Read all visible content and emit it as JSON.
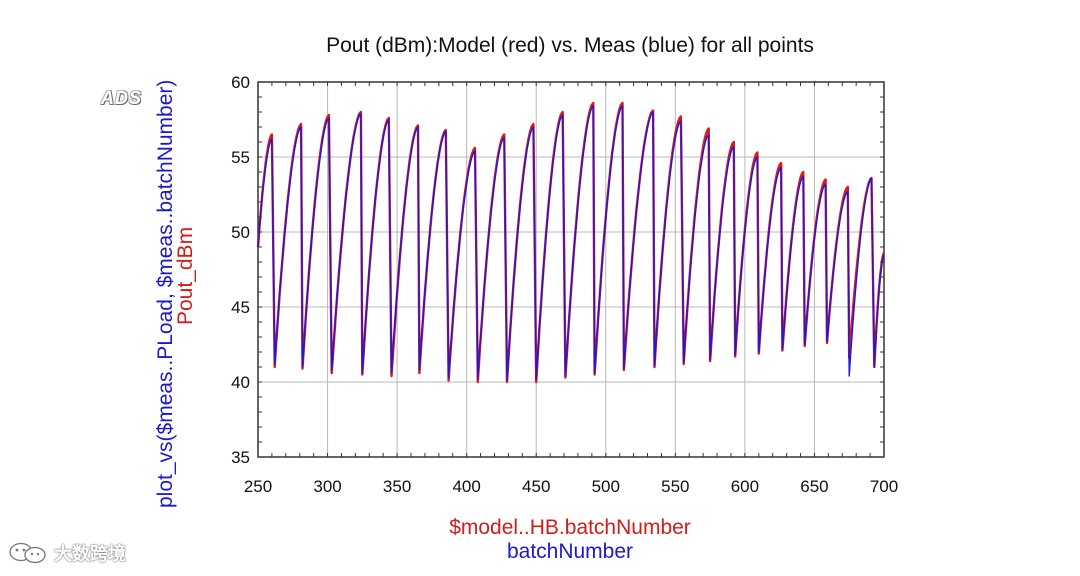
{
  "chart_data": {
    "type": "line",
    "title": "Pout (dBm):Model (red) vs. Meas (blue) for all points",
    "ylabel_blue": "plot_vs($meas..PLoad, $meas..batchNumber)",
    "ylabel_red": "Pout_dBm",
    "xlabel_red": "$model..HB.batchNumber",
    "xlabel_blue": "batchNumber",
    "xlim": [
      250,
      700
    ],
    "ylim": [
      35,
      60
    ],
    "xticks": [
      "250",
      "300",
      "350",
      "400",
      "450",
      "500",
      "550",
      "600",
      "650",
      "700"
    ],
    "yticks": [
      "35",
      "40",
      "45",
      "50",
      "55",
      "60"
    ],
    "grid": true,
    "series": [
      {
        "name": "Model (red)",
        "color": "#e01818",
        "cycles": [
          {
            "x0": 250,
            "x1": 260,
            "ymin": 49.0,
            "ymax": 56.5
          },
          {
            "x0": 262,
            "x1": 281,
            "ymin": 41.0,
            "ymax": 57.2
          },
          {
            "x0": 282,
            "x1": 301,
            "ymin": 40.9,
            "ymax": 57.8
          },
          {
            "x0": 303,
            "x1": 324,
            "ymin": 40.6,
            "ymax": 58.0
          },
          {
            "x0": 325,
            "x1": 344,
            "ymin": 40.5,
            "ymax": 57.6
          },
          {
            "x0": 346,
            "x1": 365,
            "ymin": 40.4,
            "ymax": 57.1
          },
          {
            "x0": 366,
            "x1": 385,
            "ymin": 40.6,
            "ymax": 56.8
          },
          {
            "x0": 387,
            "x1": 406,
            "ymin": 40.1,
            "ymax": 55.6
          },
          {
            "x0": 408,
            "x1": 427,
            "ymin": 40.0,
            "ymax": 56.5
          },
          {
            "x0": 429,
            "x1": 448,
            "ymin": 40.0,
            "ymax": 57.2
          },
          {
            "x0": 450,
            "x1": 469,
            "ymin": 40.0,
            "ymax": 58.0
          },
          {
            "x0": 471,
            "x1": 491,
            "ymin": 40.3,
            "ymax": 58.6
          },
          {
            "x0": 492,
            "x1": 512,
            "ymin": 40.5,
            "ymax": 58.6
          },
          {
            "x0": 513,
            "x1": 534,
            "ymin": 40.8,
            "ymax": 58.1
          },
          {
            "x0": 535,
            "x1": 554,
            "ymin": 41.0,
            "ymax": 57.7
          },
          {
            "x0": 556,
            "x1": 574,
            "ymin": 41.2,
            "ymax": 56.9
          },
          {
            "x0": 575,
            "x1": 592,
            "ymin": 41.4,
            "ymax": 56.0
          },
          {
            "x0": 593,
            "x1": 609,
            "ymin": 41.7,
            "ymax": 55.3
          },
          {
            "x0": 610,
            "x1": 626,
            "ymin": 41.9,
            "ymax": 54.6
          },
          {
            "x0": 627,
            "x1": 642,
            "ymin": 42.1,
            "ymax": 54.0
          },
          {
            "x0": 643,
            "x1": 658,
            "ymin": 42.4,
            "ymax": 53.5
          },
          {
            "x0": 659,
            "x1": 674,
            "ymin": 42.6,
            "ymax": 53.0
          },
          {
            "x0": 675,
            "x1": 691,
            "ymin": 41.6,
            "ymax": 53.6
          },
          {
            "x0": 693,
            "x1": 700,
            "ymin": 41.0,
            "ymax": 48.6
          }
        ]
      },
      {
        "name": "Meas (blue)",
        "color": "#1a1ad8",
        "cycles": [
          {
            "x0": 250,
            "x1": 260,
            "ymin": 49.0,
            "ymax": 56.2
          },
          {
            "x0": 262,
            "x1": 281,
            "ymin": 41.2,
            "ymax": 57.0
          },
          {
            "x0": 282,
            "x1": 301,
            "ymin": 41.0,
            "ymax": 57.6
          },
          {
            "x0": 303,
            "x1": 324,
            "ymin": 40.8,
            "ymax": 57.9
          },
          {
            "x0": 325,
            "x1": 344,
            "ymin": 40.6,
            "ymax": 57.5
          },
          {
            "x0": 346,
            "x1": 365,
            "ymin": 40.6,
            "ymax": 57.0
          },
          {
            "x0": 366,
            "x1": 385,
            "ymin": 40.8,
            "ymax": 56.7
          },
          {
            "x0": 387,
            "x1": 406,
            "ymin": 40.3,
            "ymax": 55.4
          },
          {
            "x0": 408,
            "x1": 427,
            "ymin": 40.2,
            "ymax": 56.3
          },
          {
            "x0": 429,
            "x1": 448,
            "ymin": 40.1,
            "ymax": 57.0
          },
          {
            "x0": 450,
            "x1": 469,
            "ymin": 40.2,
            "ymax": 57.8
          },
          {
            "x0": 471,
            "x1": 491,
            "ymin": 40.4,
            "ymax": 58.4
          },
          {
            "x0": 492,
            "x1": 512,
            "ymin": 40.6,
            "ymax": 58.4
          },
          {
            "x0": 513,
            "x1": 534,
            "ymin": 40.9,
            "ymax": 58.0
          },
          {
            "x0": 535,
            "x1": 554,
            "ymin": 41.1,
            "ymax": 57.4
          },
          {
            "x0": 556,
            "x1": 574,
            "ymin": 41.3,
            "ymax": 56.5
          },
          {
            "x0": 575,
            "x1": 592,
            "ymin": 41.5,
            "ymax": 55.7
          },
          {
            "x0": 593,
            "x1": 609,
            "ymin": 41.8,
            "ymax": 55.0
          },
          {
            "x0": 610,
            "x1": 626,
            "ymin": 42.0,
            "ymax": 54.3
          },
          {
            "x0": 627,
            "x1": 642,
            "ymin": 42.2,
            "ymax": 53.7
          },
          {
            "x0": 643,
            "x1": 658,
            "ymin": 42.5,
            "ymax": 53.2
          },
          {
            "x0": 659,
            "x1": 674,
            "ymin": 42.7,
            "ymax": 52.7
          },
          {
            "x0": 675,
            "x1": 691,
            "ymin": 40.4,
            "ymax": 53.6
          },
          {
            "x0": 693,
            "x1": 700,
            "ymin": 41.0,
            "ymax": 48.5
          }
        ]
      }
    ]
  },
  "ads_label": "ADS",
  "watermark": {
    "text": "大数跨境",
    "icon": "wechat-bubble-icon"
  }
}
